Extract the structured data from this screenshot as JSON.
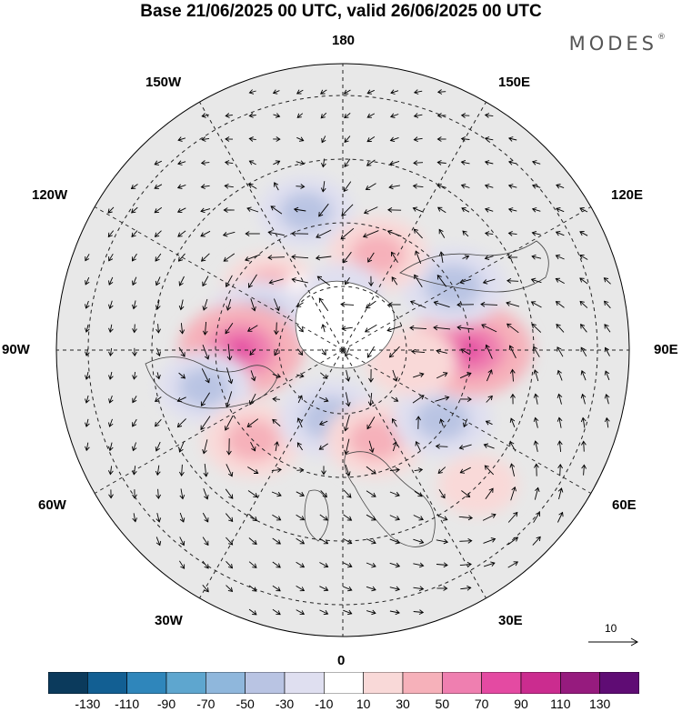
{
  "title": "Base 21/06/2025 00 UTC, valid 26/06/2025 00 UTC",
  "brand": "MODES",
  "brand_mark": "®",
  "longitude_labels": {
    "lon_180": "180",
    "lon_150e": "150E",
    "lon_120e": "120E",
    "lon_90e": "90E",
    "lon_60e": "60E",
    "lon_30e": "30E",
    "lon_0": "0",
    "lon_30w": "30W",
    "lon_60w": "60W",
    "lon_90w": "90W",
    "lon_120w": "120W",
    "lon_150w": "150W"
  },
  "reference_vector": {
    "label": "10"
  },
  "colorbar": {
    "colors": [
      "#0b3a5c",
      "#125f93",
      "#2f86bb",
      "#5ea6cf",
      "#8fb7dc",
      "#b9c4e3",
      "#dfdff0",
      "#ffffff",
      "#f9d9d8",
      "#f6b1ba",
      "#ef7fb0",
      "#e44aa2",
      "#cb2c8f",
      "#961b7e",
      "#5f0c74"
    ],
    "tick_labels": [
      "-130",
      "-110",
      "-90",
      "-70",
      "-50",
      "-30",
      "-10",
      "10",
      "30",
      "50",
      "70",
      "90",
      "110",
      "130"
    ]
  },
  "map_anomalies": [
    {
      "lon": -165,
      "lat": 45,
      "value": -40
    },
    {
      "lon": -130,
      "lat": 60,
      "value": 40
    },
    {
      "lon": -145,
      "lat": 72,
      "value": 20
    },
    {
      "lon": -110,
      "lat": 62,
      "value": -50
    },
    {
      "lon": -90,
      "lat": 58,
      "value": 70
    },
    {
      "lon": -75,
      "lat": 45,
      "value": -40
    },
    {
      "lon": -45,
      "lat": 50,
      "value": 45
    },
    {
      "lon": -10,
      "lat": 68,
      "value": -50
    },
    {
      "lon": 20,
      "lat": 60,
      "value": 45
    },
    {
      "lon": 55,
      "lat": 52,
      "value": -45
    },
    {
      "lon": 90,
      "lat": 50,
      "value": 70
    },
    {
      "lon": 80,
      "lat": 68,
      "value": 35
    },
    {
      "lon": 120,
      "lat": 50,
      "value": -50
    },
    {
      "lon": 160,
      "lat": 58,
      "value": 45
    },
    {
      "lon": 180,
      "lat": 72,
      "value": -25
    },
    {
      "lon": 45,
      "lat": 30,
      "value": 25
    }
  ]
}
